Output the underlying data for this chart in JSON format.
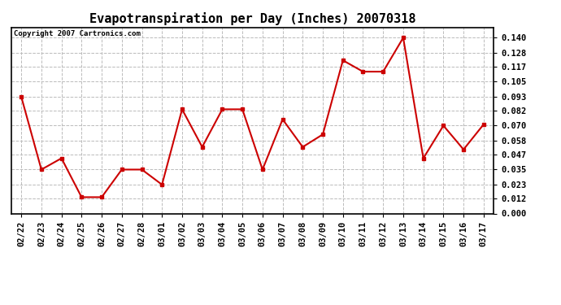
{
  "title": "Evapotranspiration per Day (Inches) 20070318",
  "copyright_text": "Copyright 2007 Cartronics.com",
  "dates": [
    "02/22",
    "02/23",
    "02/24",
    "02/25",
    "02/26",
    "02/27",
    "02/28",
    "03/01",
    "03/02",
    "03/03",
    "03/04",
    "03/05",
    "03/06",
    "03/07",
    "03/08",
    "03/09",
    "03/10",
    "03/11",
    "03/12",
    "03/13",
    "03/14",
    "03/15",
    "03/16",
    "03/17"
  ],
  "values": [
    0.093,
    0.035,
    0.044,
    0.013,
    0.013,
    0.035,
    0.035,
    0.023,
    0.083,
    0.053,
    0.083,
    0.083,
    0.035,
    0.075,
    0.053,
    0.063,
    0.122,
    0.113,
    0.113,
    0.14,
    0.044,
    0.07,
    0.051,
    0.071
  ],
  "line_color": "#cc0000",
  "marker": "s",
  "marker_size": 3,
  "line_width": 1.5,
  "ylim": [
    0.0,
    0.1482
  ],
  "yticks": [
    0.0,
    0.012,
    0.023,
    0.035,
    0.047,
    0.058,
    0.07,
    0.082,
    0.093,
    0.105,
    0.117,
    0.128,
    0.14
  ],
  "grid_color": "#bbbbbb",
  "grid_style": "--",
  "background_color": "#ffffff",
  "title_fontsize": 11,
  "copyright_fontsize": 6.5,
  "tick_fontsize": 7.5
}
